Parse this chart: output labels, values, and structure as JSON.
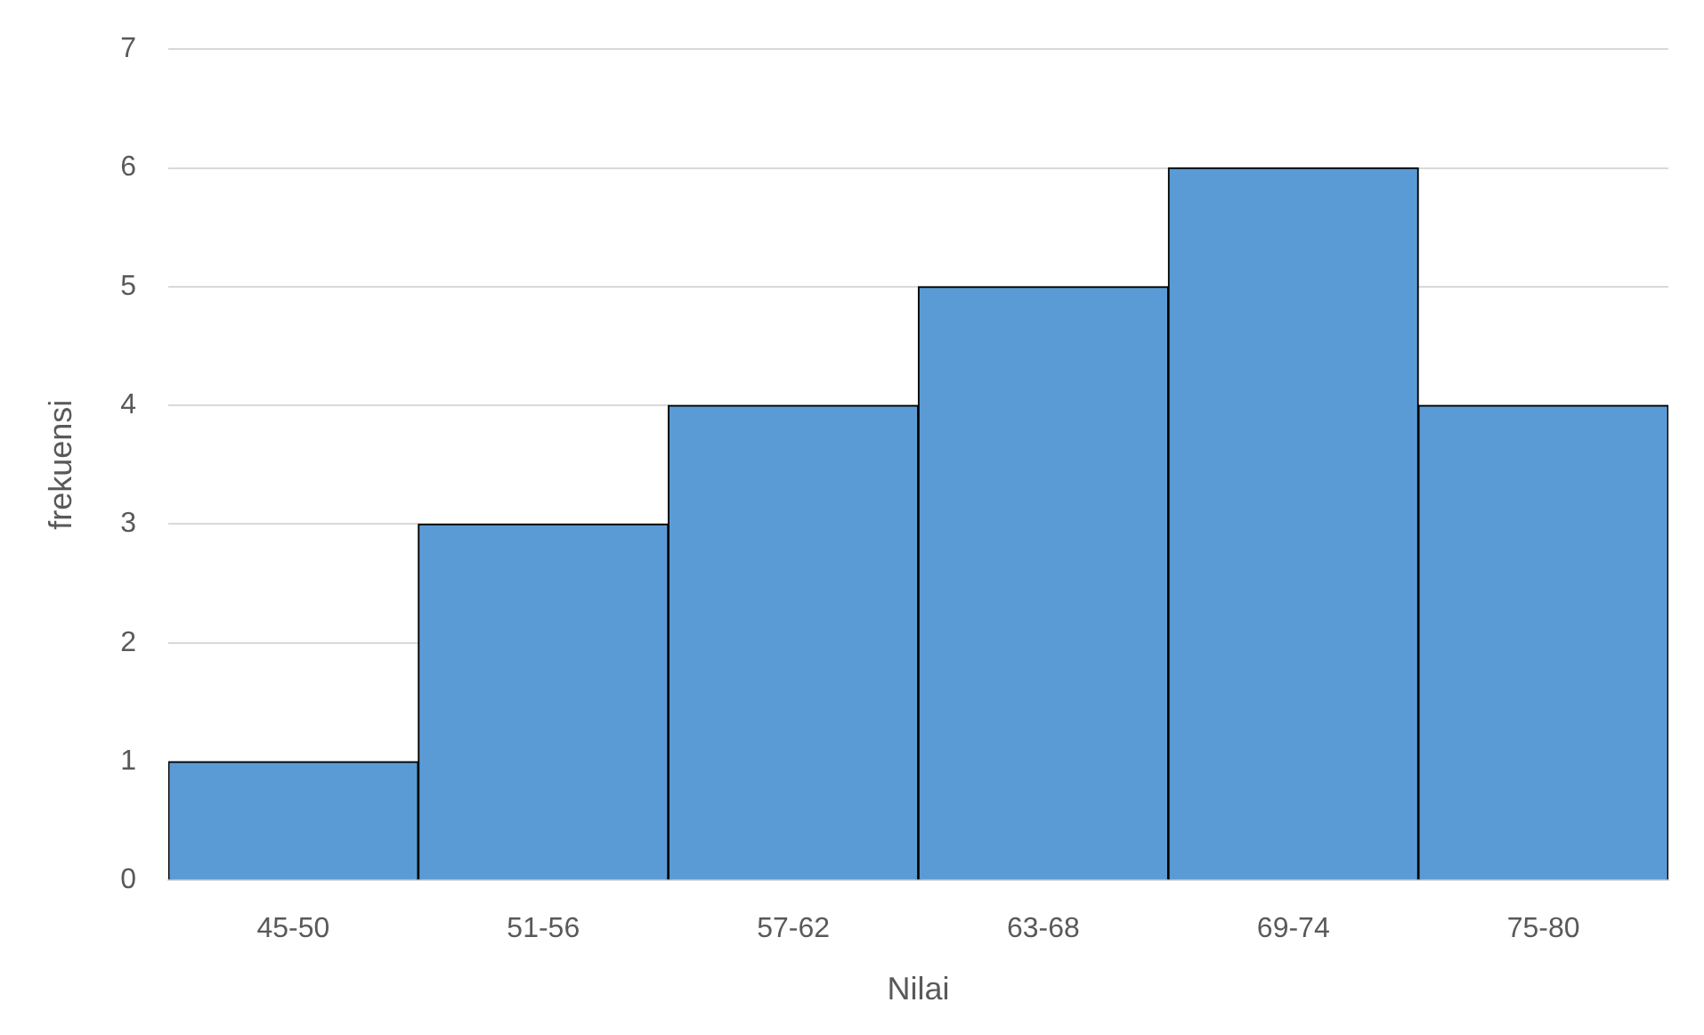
{
  "chart_data": {
    "type": "bar",
    "xlabel": "Nilai",
    "ylabel": "frekuensi",
    "categories": [
      "45-50",
      "51-56",
      "57-62",
      "63-68",
      "69-74",
      "75-80"
    ],
    "values": [
      1,
      3,
      4,
      5,
      6,
      4
    ],
    "color": "#5b9bd5",
    "ylim": [
      0,
      7
    ],
    "yticks": [
      0,
      1,
      2,
      3,
      4,
      5,
      6,
      7
    ],
    "grid": "y",
    "legend": false
  }
}
